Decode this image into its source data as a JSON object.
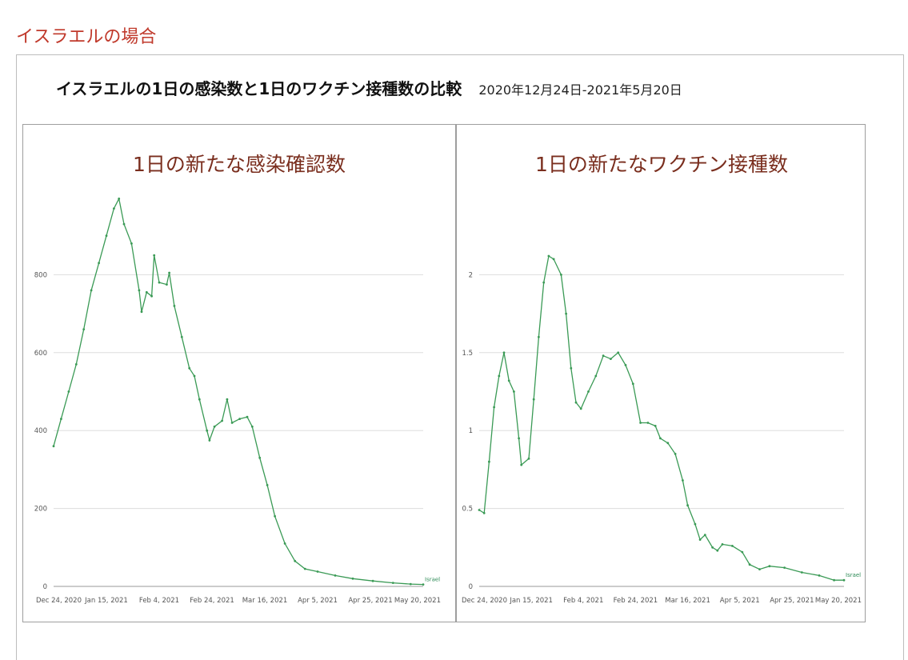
{
  "page": {
    "heading": "イスラエルの場合"
  },
  "figure": {
    "title": "イスラエルの1日の感染数と1日のワクチン接種数の比較",
    "date_range": "2020年12月24日-2021年5月20日"
  },
  "colors": {
    "heading": "#c0392b",
    "panel_title": "#7a2e1e",
    "line": "#3a9a55",
    "grid": "#dddddd"
  },
  "chart_data": [
    {
      "type": "line",
      "title": "1日の新たな感染確認数",
      "x_ticks": [
        "Dec 24, 2020",
        "Jan 15, 2021",
        "Feb 4, 2021",
        "Feb 24, 2021",
        "Mar 16, 2021",
        "Apr 5, 2021",
        "Apr 25, 2021",
        "May 20, 2021"
      ],
      "y_ticks": [
        "0",
        "200",
        "400",
        "600",
        "800"
      ],
      "ylim": [
        0,
        1000
      ],
      "grid": true,
      "series": [
        {
          "name": "Israel",
          "points": [
            [
              "2020-12-24",
              360
            ],
            [
              "2020-12-27",
              430
            ],
            [
              "2020-12-30",
              500
            ],
            [
              "2021-01-02",
              570
            ],
            [
              "2021-01-05",
              660
            ],
            [
              "2021-01-08",
              760
            ],
            [
              "2021-01-11",
              830
            ],
            [
              "2021-01-14",
              900
            ],
            [
              "2021-01-17",
              970
            ],
            [
              "2021-01-19",
              995
            ],
            [
              "2021-01-21",
              930
            ],
            [
              "2021-01-24",
              880
            ],
            [
              "2021-01-27",
              760
            ],
            [
              "2021-01-28",
              705
            ],
            [
              "2021-01-30",
              755
            ],
            [
              "2021-02-01",
              745
            ],
            [
              "2021-02-02",
              850
            ],
            [
              "2021-02-04",
              780
            ],
            [
              "2021-02-07",
              775
            ],
            [
              "2021-02-08",
              805
            ],
            [
              "2021-02-10",
              720
            ],
            [
              "2021-02-13",
              640
            ],
            [
              "2021-02-16",
              560
            ],
            [
              "2021-02-18",
              540
            ],
            [
              "2021-02-20",
              480
            ],
            [
              "2021-02-23",
              400
            ],
            [
              "2021-02-24",
              375
            ],
            [
              "2021-02-26",
              410
            ],
            [
              "2021-03-01",
              425
            ],
            [
              "2021-03-03",
              480
            ],
            [
              "2021-03-05",
              420
            ],
            [
              "2021-03-08",
              430
            ],
            [
              "2021-03-11",
              435
            ],
            [
              "2021-03-13",
              410
            ],
            [
              "2021-03-16",
              330
            ],
            [
              "2021-03-19",
              260
            ],
            [
              "2021-03-22",
              180
            ],
            [
              "2021-03-26",
              110
            ],
            [
              "2021-03-30",
              65
            ],
            [
              "2021-04-03",
              45
            ],
            [
              "2021-04-08",
              38
            ],
            [
              "2021-04-15",
              28
            ],
            [
              "2021-04-22",
              20
            ],
            [
              "2021-04-30",
              14
            ],
            [
              "2021-05-08",
              9
            ],
            [
              "2021-05-15",
              6
            ],
            [
              "2021-05-20",
              5
            ]
          ]
        }
      ]
    },
    {
      "type": "line",
      "title": "1日の新たなワクチン接種数",
      "x_ticks": [
        "Dec 24, 2020",
        "Jan 15, 2021",
        "Feb 4, 2021",
        "Feb 24, 2021",
        "Mar 16, 2021",
        "Apr 5, 2021",
        "Apr 25, 2021",
        "May 20, 2021"
      ],
      "y_ticks": [
        "0",
        "0.5",
        "1",
        "1.5",
        "2"
      ],
      "ylim": [
        0,
        2.5
      ],
      "grid": true,
      "series": [
        {
          "name": "Israel",
          "points": [
            [
              "2020-12-24",
              0.49
            ],
            [
              "2020-12-26",
              0.47
            ],
            [
              "2020-12-28",
              0.8
            ],
            [
              "2020-12-30",
              1.15
            ],
            [
              "2021-01-01",
              1.35
            ],
            [
              "2021-01-03",
              1.5
            ],
            [
              "2021-01-05",
              1.32
            ],
            [
              "2021-01-07",
              1.25
            ],
            [
              "2021-01-09",
              0.95
            ],
            [
              "2021-01-10",
              0.78
            ],
            [
              "2021-01-13",
              0.82
            ],
            [
              "2021-01-15",
              1.2
            ],
            [
              "2021-01-17",
              1.6
            ],
            [
              "2021-01-19",
              1.95
            ],
            [
              "2021-01-21",
              2.12
            ],
            [
              "2021-01-23",
              2.1
            ],
            [
              "2021-01-26",
              2.0
            ],
            [
              "2021-01-28",
              1.75
            ],
            [
              "2021-01-30",
              1.4
            ],
            [
              "2021-02-01",
              1.18
            ],
            [
              "2021-02-03",
              1.14
            ],
            [
              "2021-02-06",
              1.25
            ],
            [
              "2021-02-09",
              1.35
            ],
            [
              "2021-02-12",
              1.48
            ],
            [
              "2021-02-15",
              1.46
            ],
            [
              "2021-02-18",
              1.5
            ],
            [
              "2021-02-21",
              1.42
            ],
            [
              "2021-02-24",
              1.3
            ],
            [
              "2021-02-27",
              1.05
            ],
            [
              "2021-03-02",
              1.05
            ],
            [
              "2021-03-05",
              1.03
            ],
            [
              "2021-03-07",
              0.95
            ],
            [
              "2021-03-10",
              0.92
            ],
            [
              "2021-03-13",
              0.85
            ],
            [
              "2021-03-16",
              0.68
            ],
            [
              "2021-03-18",
              0.52
            ],
            [
              "2021-03-21",
              0.4
            ],
            [
              "2021-03-23",
              0.3
            ],
            [
              "2021-03-25",
              0.33
            ],
            [
              "2021-03-28",
              0.25
            ],
            [
              "2021-03-30",
              0.23
            ],
            [
              "2021-04-01",
              0.27
            ],
            [
              "2021-04-05",
              0.26
            ],
            [
              "2021-04-09",
              0.22
            ],
            [
              "2021-04-12",
              0.14
            ],
            [
              "2021-04-16",
              0.11
            ],
            [
              "2021-04-20",
              0.13
            ],
            [
              "2021-04-26",
              0.12
            ],
            [
              "2021-05-03",
              0.09
            ],
            [
              "2021-05-10",
              0.07
            ],
            [
              "2021-05-16",
              0.04
            ],
            [
              "2021-05-20",
              0.04
            ]
          ]
        }
      ]
    }
  ]
}
